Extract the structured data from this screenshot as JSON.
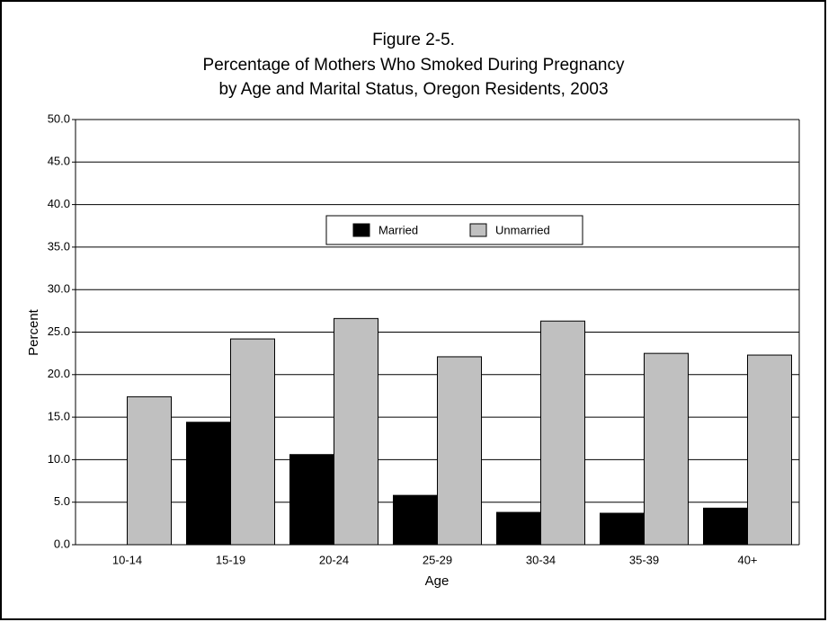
{
  "chart_data": {
    "type": "bar",
    "title": [
      "Figure 2-5.",
      "Percentage of Mothers Who Smoked During Pregnancy",
      "by Age and Marital Status, Oregon Residents, 2003"
    ],
    "x_label": "Age",
    "y_label": "Percent",
    "categories": [
      "10-14",
      "15-19",
      "20-24",
      "25-29",
      "30-34",
      "35-39",
      "40+"
    ],
    "series": [
      {
        "name": "Married",
        "color": "#000000",
        "values": [
          0,
          14.4,
          10.6,
          5.8,
          3.8,
          3.7,
          4.3
        ]
      },
      {
        "name": "Unmarried",
        "color": "#c0c0c0",
        "values": [
          17.4,
          24.2,
          26.6,
          22.1,
          26.3,
          22.5,
          22.3
        ]
      }
    ],
    "ylim": [
      0,
      50
    ],
    "yticks": [
      {
        "value": 0,
        "label": "0.0"
      },
      {
        "value": 5,
        "label": "5.0"
      },
      {
        "value": 10,
        "label": "10.0"
      },
      {
        "value": 15,
        "label": "15.0"
      },
      {
        "value": 20,
        "label": "20.0"
      },
      {
        "value": 25,
        "label": "25.0"
      },
      {
        "value": 30,
        "label": "30.0"
      },
      {
        "value": 35,
        "label": "35.0"
      },
      {
        "value": 40,
        "label": "40.0"
      },
      {
        "value": 45,
        "label": "45.0"
      },
      {
        "value": 50,
        "label": "50.0"
      }
    ],
    "grid": true,
    "legend": "center"
  }
}
